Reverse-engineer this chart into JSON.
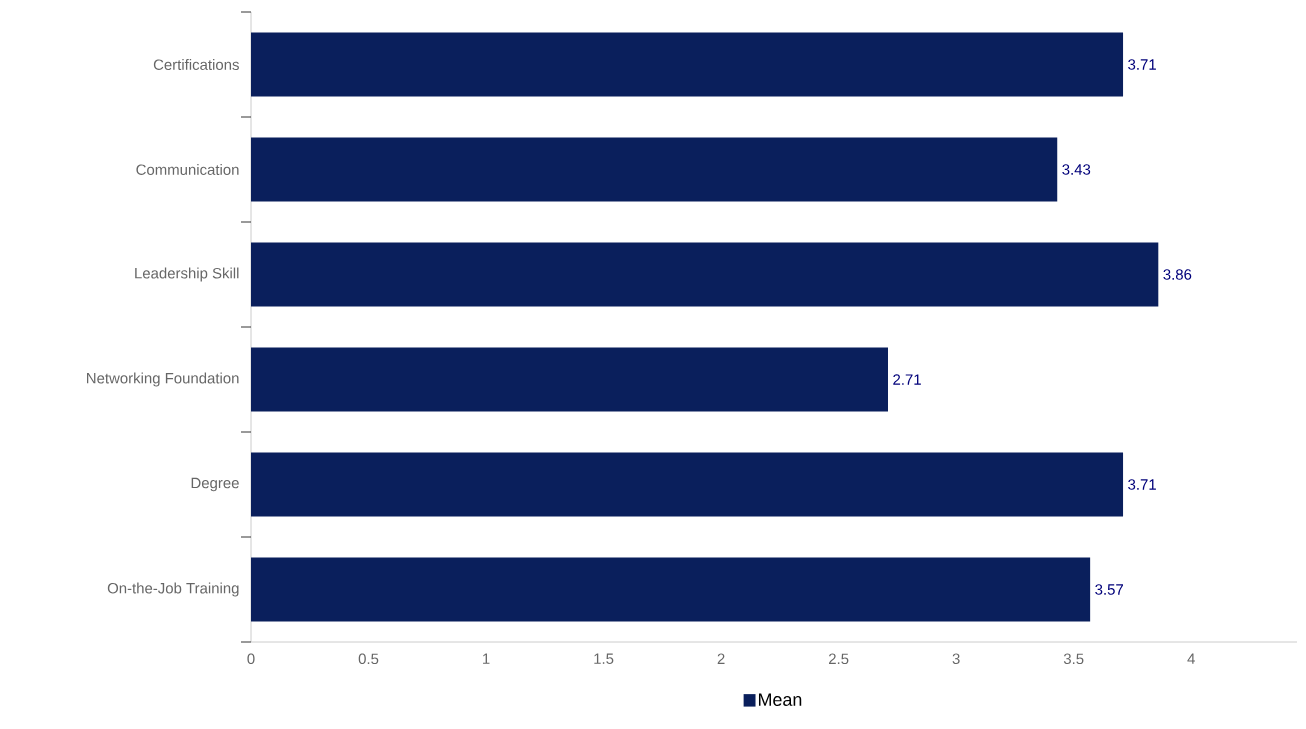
{
  "chart_data": {
    "type": "bar",
    "orientation": "horizontal",
    "categories": [
      "Certifications",
      "Communication",
      "Leadership Skill",
      "Networking Foundation",
      "Degree",
      "On-the-Job Training"
    ],
    "series": [
      {
        "name": "Mean",
        "color": "#0a1f5c",
        "values": [
          3.71,
          3.43,
          3.86,
          2.71,
          3.71,
          3.57
        ]
      }
    ],
    "xlim": [
      0,
      4.45
    ],
    "xticks": [
      0,
      0.5,
      1,
      1.5,
      2,
      2.5,
      3,
      3.5,
      4
    ],
    "data_labels": true,
    "legend": "bottom",
    "grid": false
  }
}
